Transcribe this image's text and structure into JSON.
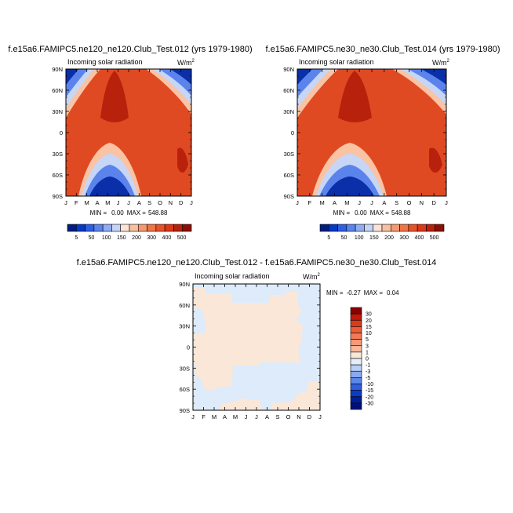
{
  "chart_data": [
    {
      "type": "heatmap",
      "title": "f.e15a6.FAMIPC5.ne120_ne120.Club_Test.012 (yrs 1979-1980)",
      "subtitle": "Incoming solar radiation",
      "units": "W/m",
      "units_superscript": "2",
      "x_ticks": [
        "J",
        "F",
        "M",
        "A",
        "M",
        "J",
        "J",
        "A",
        "S",
        "O",
        "N",
        "D",
        "J"
      ],
      "y_ticks": [
        "90N",
        "60N",
        "30N",
        "0",
        "30S",
        "60S",
        "90S"
      ],
      "stats_min_label": "MIN =",
      "stats_min": "0.00",
      "stats_max_label": "MAX =",
      "stats_max": "548.88",
      "colorbar_labels": [
        "5",
        "50",
        "100",
        "150",
        "200",
        "300",
        "400",
        "500"
      ],
      "colormap": [
        "#001d80",
        "#0839c4",
        "#2d5fe0",
        "#5b83ec",
        "#90acf2",
        "#c4d4f6",
        "#fbe3d6",
        "#f8c0a2",
        "#f59a70",
        "#ef7446",
        "#e8522a",
        "#dd3618",
        "#b8210c",
        "#8a0f07"
      ]
    },
    {
      "type": "heatmap",
      "title": "f.e15a6.FAMIPC5.ne30_ne30.Club_Test.014 (yrs 1979-1980)",
      "subtitle": "Incoming solar radiation",
      "units": "W/m",
      "units_superscript": "2",
      "x_ticks": [
        "J",
        "F",
        "M",
        "A",
        "M",
        "J",
        "J",
        "A",
        "S",
        "O",
        "N",
        "D",
        "J"
      ],
      "y_ticks": [
        "90N",
        "60N",
        "30N",
        "0",
        "30S",
        "60S",
        "90S"
      ],
      "stats_min_label": "MIN =",
      "stats_min": "0.00",
      "stats_max_label": "MAX =",
      "stats_max": "548.88",
      "colorbar_labels": [
        "5",
        "50",
        "100",
        "150",
        "200",
        "300",
        "400",
        "500"
      ],
      "colormap": [
        "#001d80",
        "#0839c4",
        "#2d5fe0",
        "#5b83ec",
        "#90acf2",
        "#c4d4f6",
        "#fbe3d6",
        "#f8c0a2",
        "#f59a70",
        "#ef7446",
        "#e8522a",
        "#dd3618",
        "#b8210c",
        "#8a0f07"
      ]
    },
    {
      "type": "heatmap",
      "title": "f.e15a6.FAMIPC5.ne120_ne120.Club_Test.012 - f.e15a6.FAMIPC5.ne30_ne30.Club_Test.014",
      "subtitle": "Incoming solar radiation",
      "units": "W/m",
      "units_superscript": "2",
      "x_ticks": [
        "J",
        "F",
        "M",
        "A",
        "M",
        "J",
        "J",
        "A",
        "S",
        "O",
        "N",
        "D",
        "J"
      ],
      "y_ticks": [
        "90N",
        "60N",
        "30N",
        "0",
        "30S",
        "60S",
        "90S"
      ],
      "stats_min_label": "MIN =",
      "stats_min": "-0.27",
      "stats_max_label": "MAX =",
      "stats_max": "0.04",
      "colorbar_labels": [
        "30",
        "20",
        "15",
        "10",
        "5",
        "3",
        "1",
        "0",
        "-1",
        "-3",
        "-5",
        "-10",
        "-15",
        "-20",
        "-30"
      ],
      "colormap": [
        "#8b0000",
        "#c01a0a",
        "#dd3a1a",
        "#ef5c36",
        "#f57a55",
        "#f89a78",
        "#f9b89a",
        "#fbe7d7",
        "#e3eefb",
        "#b8cef5",
        "#8aaaf0",
        "#5c86ea",
        "#2f5fe0",
        "#0b3cc8",
        "#001e9a",
        "#00107a"
      ],
      "difference_regions": [
        {
          "label": "positive",
          "color": "#fbe7d7"
        },
        {
          "label": "negative",
          "color": "#ddebfb"
        }
      ]
    }
  ]
}
